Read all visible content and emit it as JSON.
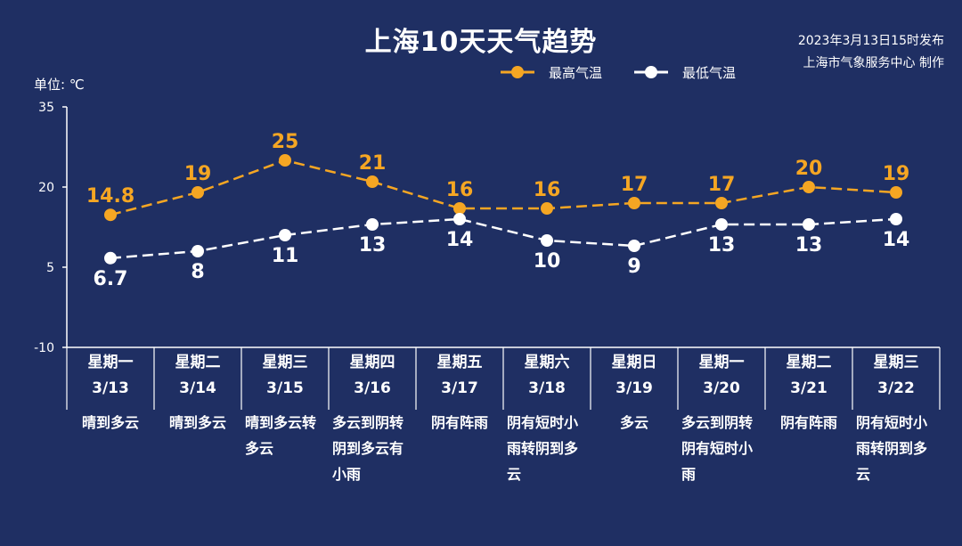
{
  "title": "上海10天天气趋势",
  "publisher": {
    "line1": "2023年3月13日15时发布",
    "line2": "上海市气象服务中心 制作"
  },
  "unit_label": "单位: ℃",
  "legend": {
    "high": "最高气温",
    "low": "最低气温"
  },
  "colors": {
    "background": "#1f2f63",
    "high": "#f5a623",
    "low": "#ffffff"
  },
  "chart_data": {
    "type": "line",
    "ylim": [
      -10,
      35
    ],
    "yticks": [
      35,
      20,
      5,
      -10
    ],
    "grid": false,
    "legend_position": "top",
    "categories": [
      "3/13",
      "3/14",
      "3/15",
      "3/16",
      "3/17",
      "3/18",
      "3/19",
      "3/20",
      "3/21",
      "3/22"
    ],
    "weekdays": [
      "星期一",
      "星期二",
      "星期三",
      "星期四",
      "星期五",
      "星期六",
      "星期日",
      "星期一",
      "星期二",
      "星期三"
    ],
    "weather": [
      "晴到多云",
      "晴到多云",
      "晴到多云转多云",
      "多云到阴转阴到多云有小雨",
      "阴有阵雨",
      "阴有短时小雨转阴到多云",
      "多云",
      "多云到阴转阴有短时小雨",
      "阴有阵雨",
      "阴有短时小雨转阴到多云"
    ],
    "series": [
      {
        "name": "最高气温",
        "values": [
          14.8,
          19,
          25,
          21,
          16,
          16,
          17,
          17,
          20,
          19
        ],
        "labels": [
          "14.8",
          "19",
          "25",
          "21",
          "16",
          "16",
          "17",
          "17",
          "20",
          "19"
        ]
      },
      {
        "name": "最低气温",
        "values": [
          6.7,
          8,
          11,
          13,
          14,
          10,
          9,
          13,
          13,
          14
        ],
        "labels": [
          "6.7",
          "8",
          "11",
          "13",
          "14",
          "10",
          "9",
          "13",
          "13",
          "14"
        ]
      }
    ]
  }
}
